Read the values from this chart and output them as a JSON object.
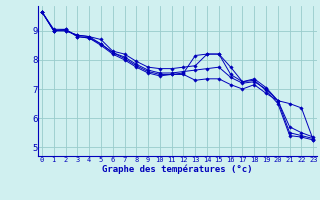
{
  "title": "Graphe des températures (°c)",
  "background_color": "#d0f0f0",
  "line_color": "#0000bb",
  "grid_color": "#99cccc",
  "xlim": [
    -0.3,
    23.3
  ],
  "ylim": [
    4.7,
    9.85
  ],
  "xticks": [
    0,
    1,
    2,
    3,
    4,
    5,
    6,
    7,
    8,
    9,
    10,
    11,
    12,
    13,
    14,
    15,
    16,
    17,
    18,
    19,
    20,
    21,
    22,
    23
  ],
  "yticks": [
    5,
    6,
    7,
    8,
    9
  ],
  "series": [
    [
      9.65,
      9.0,
      9.0,
      8.85,
      8.8,
      8.7,
      8.3,
      8.2,
      7.95,
      7.75,
      7.7,
      7.7,
      7.75,
      7.8,
      8.2,
      8.2,
      7.75,
      7.25,
      7.35,
      7.05,
      6.6,
      5.7,
      5.5,
      5.35
    ],
    [
      9.65,
      9.0,
      9.0,
      8.85,
      8.8,
      8.55,
      8.25,
      8.1,
      7.85,
      7.65,
      7.55,
      7.55,
      7.6,
      7.65,
      7.7,
      7.75,
      7.4,
      7.2,
      7.25,
      7.0,
      6.6,
      5.5,
      5.4,
      5.3
    ],
    [
      9.65,
      9.0,
      9.05,
      8.8,
      8.75,
      8.55,
      8.25,
      8.05,
      7.8,
      7.6,
      7.5,
      7.5,
      7.55,
      8.15,
      8.2,
      8.2,
      7.5,
      7.25,
      7.3,
      6.95,
      6.5,
      5.4,
      5.35,
      5.25
    ],
    [
      9.65,
      9.05,
      9.05,
      8.8,
      8.75,
      8.5,
      8.2,
      8.0,
      7.75,
      7.55,
      7.45,
      7.5,
      7.5,
      7.3,
      7.35,
      7.35,
      7.15,
      7.0,
      7.15,
      6.85,
      6.6,
      6.5,
      6.35,
      5.25
    ]
  ]
}
